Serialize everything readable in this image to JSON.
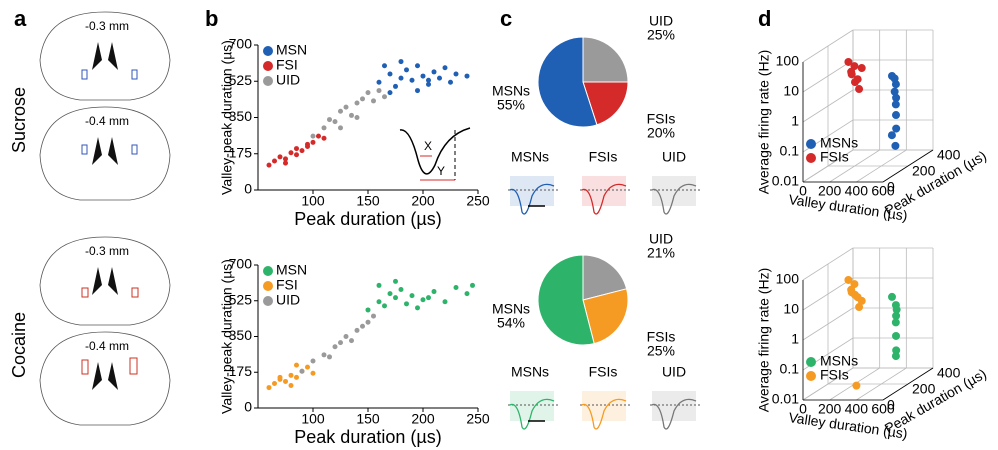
{
  "labels": {
    "panel_a": "a",
    "panel_b": "b",
    "panel_c": "c",
    "panel_d": "d",
    "row_top": "Sucrose",
    "row_bottom": "Cocaine",
    "sections": [
      "-0.3 mm",
      "-0.4 mm",
      "-0.3 mm",
      "-0.4 mm"
    ],
    "inset_x": "X",
    "inset_y": "Y",
    "waveforms_top": [
      "MSNs",
      "FSIs",
      "UID"
    ],
    "waveforms_bottom": [
      "MSNs",
      "FSIs",
      "UID"
    ]
  },
  "chart_data": [
    {
      "type": "scatter",
      "xlabel": "Peak duration (µs)",
      "ylabel": "Valley-peak duration (µs)",
      "xlim": [
        50,
        250
      ],
      "xticks": [
        100,
        150,
        200,
        250
      ],
      "ylim": [
        0,
        700
      ],
      "yticks": [
        0,
        175,
        350,
        525,
        700
      ],
      "legend": "upper left",
      "series": [
        {
          "name": "MSN",
          "color": "#1f5fb4",
          "x": [
            160,
            170,
            175,
            180,
            185,
            190,
            195,
            200,
            205,
            210,
            215,
            220,
            230,
            240,
            180,
            195,
            170,
            205,
            225,
            165
          ],
          "values": [
            520,
            560,
            500,
            540,
            580,
            530,
            600,
            550,
            510,
            570,
            540,
            590,
            560,
            550,
            620,
            480,
            470,
            530,
            520,
            600
          ]
        },
        {
          "name": "FSI",
          "color": "#d42a2a",
          "x": [
            60,
            65,
            70,
            75,
            80,
            85,
            90,
            95,
            100,
            105,
            110,
            85,
            95,
            75
          ],
          "values": [
            120,
            140,
            160,
            150,
            180,
            200,
            190,
            220,
            230,
            260,
            250,
            170,
            210,
            130
          ]
        },
        {
          "name": "UID",
          "color": "#9a9a9a",
          "x": [
            100,
            110,
            115,
            120,
            125,
            130,
            135,
            140,
            145,
            150,
            155,
            160,
            165,
            125,
            140
          ],
          "values": [
            260,
            300,
            340,
            330,
            380,
            400,
            360,
            420,
            440,
            470,
            430,
            480,
            450,
            300,
            350
          ]
        }
      ]
    },
    {
      "type": "scatter",
      "xlabel": "Peak duration (µs)",
      "ylabel": "Valley-peak duration (µs)",
      "xlim": [
        50,
        250
      ],
      "xticks": [
        100,
        150,
        200,
        250
      ],
      "ylim": [
        0,
        700
      ],
      "yticks": [
        0,
        175,
        350,
        525,
        700
      ],
      "legend": "upper left",
      "series": [
        {
          "name": "MSN",
          "color": "#2eb46a",
          "x": [
            150,
            160,
            165,
            170,
            175,
            180,
            185,
            190,
            200,
            210,
            220,
            230,
            240,
            175,
            195,
            205,
            160,
            245
          ],
          "values": [
            480,
            520,
            500,
            560,
            540,
            580,
            510,
            550,
            530,
            570,
            520,
            590,
            560,
            620,
            490,
            540,
            600,
            600
          ]
        },
        {
          "name": "FSI",
          "color": "#f59a23",
          "x": [
            60,
            65,
            70,
            75,
            80,
            85,
            90,
            95,
            100,
            80,
            70,
            85
          ],
          "values": [
            100,
            120,
            140,
            130,
            160,
            150,
            180,
            200,
            170,
            110,
            150,
            210
          ]
        },
        {
          "name": "UID",
          "color": "#9a9a9a",
          "x": [
            90,
            100,
            110,
            120,
            125,
            130,
            135,
            140,
            150,
            155,
            115,
            145
          ],
          "values": [
            180,
            230,
            260,
            300,
            320,
            350,
            330,
            380,
            420,
            450,
            250,
            400
          ]
        }
      ]
    },
    {
      "type": "pie",
      "categories": [
        "UID",
        "FSIs",
        "MSNs"
      ],
      "values": [
        25,
        20,
        55
      ],
      "value_labels": [
        "25%",
        "20%",
        "55%"
      ],
      "colors": [
        "#9a9a9a",
        "#d42a2a",
        "#1f5fb4"
      ]
    },
    {
      "type": "pie",
      "categories": [
        "UID",
        "FSIs",
        "MSNs"
      ],
      "values": [
        21,
        25,
        54
      ],
      "value_labels": [
        "21%",
        "25%",
        "54%"
      ],
      "colors": [
        "#9a9a9a",
        "#f59a23",
        "#2eb46a"
      ]
    },
    {
      "type": "scatter3d",
      "xlabel": "Valley duration (µs)",
      "ylabel": "Average firing rate (Hz)",
      "zlabel": "Peak duration (µs)",
      "xlim": [
        0,
        600
      ],
      "xticks": [
        0,
        200,
        400,
        600
      ],
      "ylim": [
        0.01,
        100
      ],
      "yticks": [
        0.01,
        0.1,
        1,
        10,
        100
      ],
      "log_y": true,
      "zlim": [
        0,
        400
      ],
      "zticks": [
        0,
        200,
        400
      ],
      "legend": "lower left",
      "series": [
        {
          "name": "MSNs",
          "color": "#1f5fb4",
          "x": [
            480,
            500,
            520,
            490,
            510,
            530,
            470,
            500,
            515,
            495
          ],
          "values": [
            10,
            5,
            2,
            1,
            0.5,
            0.2,
            0.1,
            3,
            0.05,
            8
          ],
          "z": [
            200,
            210,
            190,
            220,
            200,
            180,
            210,
            200,
            190,
            205
          ]
        },
        {
          "name": "FSIs",
          "color": "#d42a2a",
          "x": [
            200,
            230,
            260,
            280,
            250,
            220,
            300,
            240
          ],
          "values": [
            40,
            20,
            10,
            5,
            30,
            15,
            25,
            8
          ],
          "z": [
            150,
            140,
            160,
            150,
            145,
            155,
            150,
            160
          ]
        }
      ]
    },
    {
      "type": "scatter3d",
      "xlabel": "Valley duration (µs)",
      "ylabel": "Average firing rate (Hz)",
      "zlabel": "Peak duration (µs)",
      "xlim": [
        0,
        600
      ],
      "xticks": [
        0,
        200,
        400,
        600
      ],
      "ylim": [
        0.01,
        100
      ],
      "yticks": [
        0.01,
        0.1,
        1,
        10,
        100
      ],
      "log_y": true,
      "zlim": [
        0,
        400
      ],
      "zticks": [
        0,
        200,
        400
      ],
      "legend": "lower left",
      "series": [
        {
          "name": "MSNs",
          "color": "#2eb46a",
          "x": [
            480,
            500,
            520,
            490,
            510,
            530,
            500,
            515
          ],
          "values": [
            8,
            4,
            2,
            1,
            0.4,
            0.15,
            0.08,
            3
          ],
          "z": [
            200,
            210,
            190,
            220,
            200,
            180,
            210,
            200
          ]
        },
        {
          "name": "FSIs",
          "color": "#f59a23",
          "x": [
            200,
            230,
            260,
            280,
            250,
            220,
            300,
            240,
            260
          ],
          "values": [
            40,
            20,
            10,
            5,
            30,
            15,
            8,
            12,
            0.012
          ],
          "z": [
            150,
            140,
            160,
            150,
            145,
            155,
            150,
            160,
            150
          ]
        }
      ]
    }
  ]
}
